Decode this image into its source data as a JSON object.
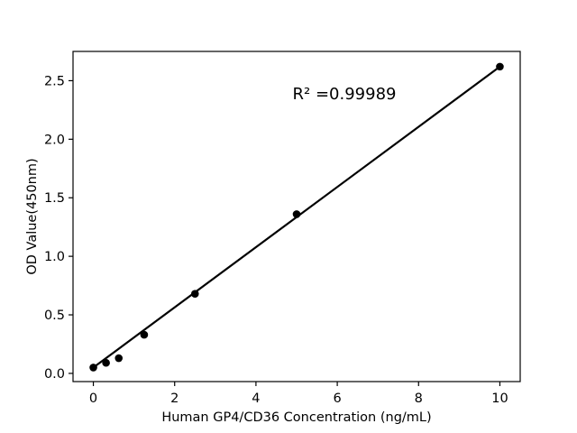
{
  "figure": {
    "background": "#ffffff",
    "foreground": "#000000"
  },
  "chart_data": {
    "type": "scatter",
    "title": "",
    "xlabel": "Human GP4/CD36 Concentration (ng/mL)",
    "ylabel": "OD Value(450nm)",
    "annotation": "R² =0.99989",
    "x": [
      0,
      0.3125,
      0.625,
      1.25,
      2.5,
      5,
      10
    ],
    "y": [
      0.05,
      0.09,
      0.13,
      0.33,
      0.68,
      1.36,
      2.62
    ],
    "fit_line": {
      "x": [
        0,
        10
      ],
      "y": [
        0.05,
        2.62
      ]
    },
    "xlim": [
      -0.5,
      10.5
    ],
    "ylim": [
      -0.07,
      2.75
    ],
    "xticks": [
      0,
      2,
      4,
      6,
      8,
      10
    ],
    "xtick_labels": [
      "0",
      "2",
      "4",
      "6",
      "8",
      "10"
    ],
    "yticks": [
      0.0,
      0.5,
      1.0,
      1.5,
      2.0,
      2.5
    ],
    "ytick_labels": [
      "0.0",
      "0.5",
      "1.0",
      "1.5",
      "2.0",
      "2.5"
    ],
    "grid": false,
    "legend": "none",
    "marker_color": "#000000",
    "line_color": "#000000",
    "axis_color": "#000000"
  }
}
